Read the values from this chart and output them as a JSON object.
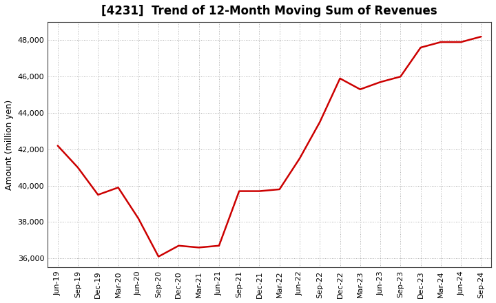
{
  "title": "[4231]  Trend of 12-Month Moving Sum of Revenues",
  "ylabel": "Amount (million yen)",
  "line_color": "#cc0000",
  "background_color": "#ffffff",
  "plot_bg_color": "#ffffff",
  "grid_color": "#999999",
  "labels": [
    "Jun-19",
    "Sep-19",
    "Dec-19",
    "Mar-20",
    "Jun-20",
    "Sep-20",
    "Dec-20",
    "Mar-21",
    "Jun-21",
    "Sep-21",
    "Dec-21",
    "Mar-22",
    "Jun-22",
    "Sep-22",
    "Dec-22",
    "Mar-23",
    "Jun-23",
    "Sep-23",
    "Dec-23",
    "Mar-24",
    "Jun-24",
    "Sep-24"
  ],
  "values": [
    42200,
    41000,
    39500,
    39900,
    38200,
    36100,
    36700,
    36600,
    36700,
    39700,
    39700,
    39800,
    41500,
    43500,
    45900,
    45300,
    45700,
    46000,
    47600,
    47900,
    47900,
    48200
  ],
  "ylim": [
    35500,
    49000
  ],
  "yticks": [
    36000,
    38000,
    40000,
    42000,
    44000,
    46000,
    48000
  ],
  "figsize": [
    7.2,
    4.4
  ],
  "dpi": 100,
  "title_fontsize": 12,
  "ylabel_fontsize": 9,
  "tick_fontsize": 8,
  "line_width": 1.8
}
